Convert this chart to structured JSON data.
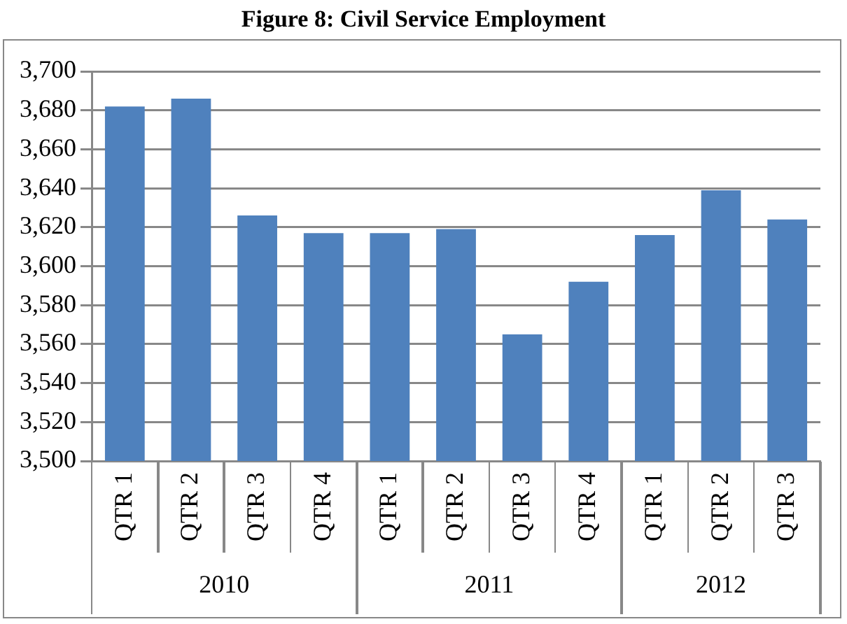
{
  "chart_data": {
    "type": "bar",
    "title": "Figure 8: Civil Service Employment",
    "categories": [
      "QTR 1",
      "QTR 2",
      "QTR 3",
      "QTR 4",
      "QTR 1",
      "QTR 2",
      "QTR 3",
      "QTR 4",
      "QTR 1",
      "QTR 2",
      "QTR 3"
    ],
    "values": [
      3682,
      3686,
      3626,
      3617,
      3617,
      3619,
      3565,
      3592,
      3616,
      3639,
      3624
    ],
    "color": "#4f81bd",
    "ylim": [
      3500,
      3700
    ],
    "yticks": [
      {
        "value": 3500,
        "label": "3,500"
      },
      {
        "value": 3520,
        "label": "3,520"
      },
      {
        "value": 3540,
        "label": "3,540"
      },
      {
        "value": 3560,
        "label": "3,560"
      },
      {
        "value": 3580,
        "label": "3,580"
      },
      {
        "value": 3600,
        "label": "3,600"
      },
      {
        "value": 3620,
        "label": "3,620"
      },
      {
        "value": 3640,
        "label": "3,640"
      },
      {
        "value": 3660,
        "label": "3,660"
      },
      {
        "value": 3680,
        "label": "3,680"
      },
      {
        "value": 3700,
        "label": "3,700"
      }
    ],
    "grid": "y",
    "annotations": [
      "2010",
      "2011",
      "2012"
    ]
  }
}
